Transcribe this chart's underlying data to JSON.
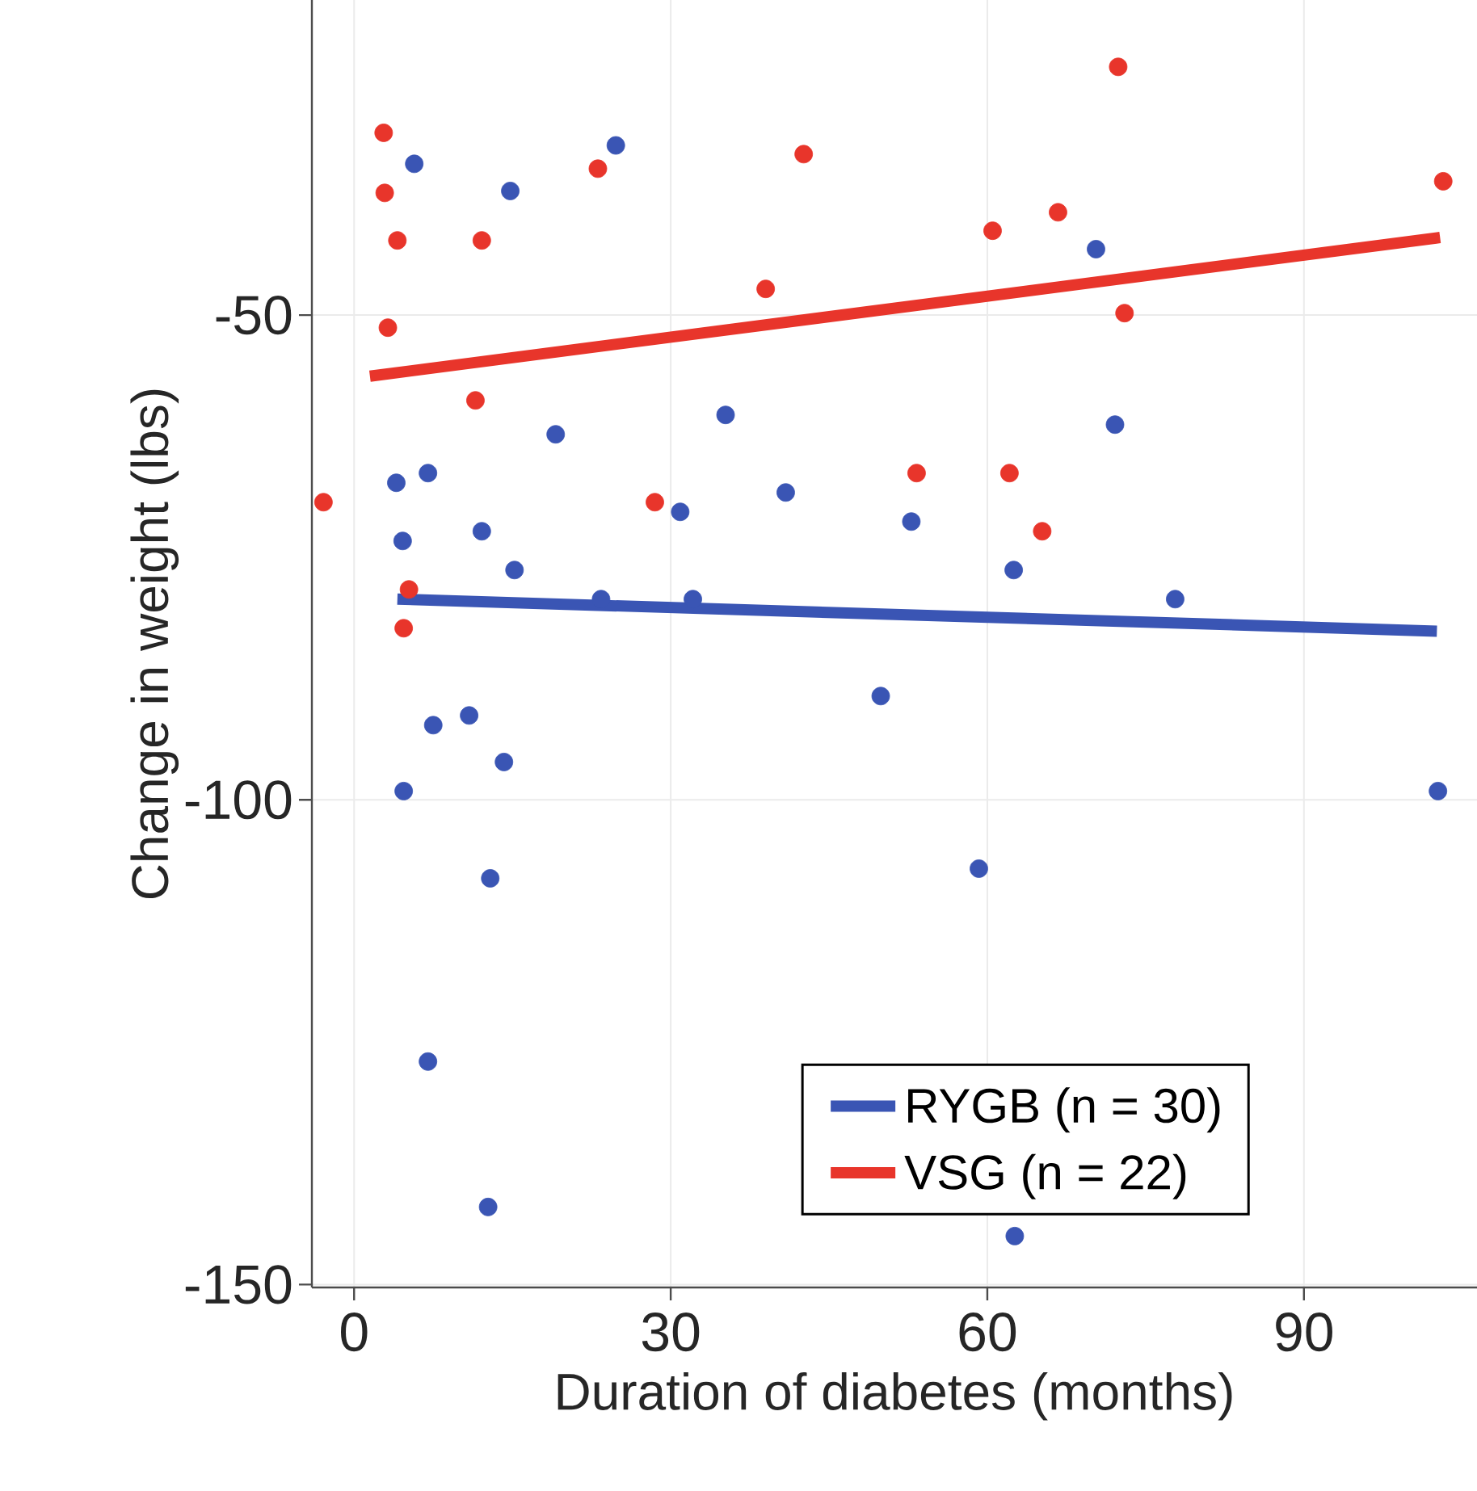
{
  "chart_data": {
    "type": "scatter",
    "xlabel": "Duration of diabetes (months)",
    "ylabel": "Change in weight (lbs)",
    "xlim": [
      -4,
      106.4
    ],
    "ylim": [
      -150.3,
      -17.5
    ],
    "xticks": [
      0,
      30,
      60,
      90
    ],
    "yticks": [
      -150,
      -100,
      -50
    ],
    "grid": true,
    "legend": "bottom right",
    "marker": "circle",
    "series": [
      {
        "color": "#3a55b4",
        "x": [
          5.7,
          24.8,
          14.8,
          70.3,
          19.1,
          35.2,
          72.1,
          4.0,
          7.0,
          4.6,
          12.1,
          30.9,
          40.9,
          52.8,
          15.2,
          23.4,
          32.1,
          62.5,
          77.8,
          49.9,
          7.5,
          10.9,
          14.2,
          4.7,
          102.7,
          12.9,
          59.2,
          7.0,
          12.7,
          62.6
        ],
        "values": [
          -34.4,
          -32.5,
          -37.2,
          -43.2,
          -62.3,
          -60.3,
          -61.3,
          -67.3,
          -66.3,
          -73.3,
          -72.3,
          -70.3,
          -68.3,
          -71.3,
          -76.3,
          -79.3,
          -79.3,
          -76.3,
          -79.3,
          -89.3,
          -92.3,
          -91.3,
          -96.1,
          -99.1,
          -99.1,
          -108.1,
          -107.1,
          -127.0,
          -142.0,
          -145.0
        ]
      },
      {
        "color": "#e8352b",
        "x": [
          2.8,
          2.9,
          4.1,
          3.2,
          72.4,
          23.1,
          42.6,
          12.1,
          39.0,
          60.5,
          66.7,
          103.2,
          73.0,
          11.5,
          -2.9,
          28.5,
          53.3,
          62.1,
          65.2,
          5.2,
          4.7
        ],
        "values": [
          -31.2,
          -37.4,
          -42.3,
          -51.3,
          -24.4,
          -34.9,
          -33.4,
          -42.3,
          -47.3,
          -41.3,
          -39.4,
          -36.2,
          -49.8,
          -58.8,
          -69.3,
          -69.3,
          -66.3,
          -66.3,
          -72.3,
          -78.3,
          -82.3
        ]
      },
      {
        "type": "line",
        "marker": "none",
        "name": "RYGB (n = 30)",
        "color": "#3a55b4",
        "x": [
          4.1,
          102.6
        ],
        "values": [
          -79.3,
          -82.6
        ]
      },
      {
        "type": "line",
        "marker": "none",
        "name": "VSG (n = 22)",
        "color": "#e8352b",
        "x": [
          1.5,
          102.9
        ],
        "values": [
          -56.3,
          -42.0
        ]
      }
    ]
  }
}
